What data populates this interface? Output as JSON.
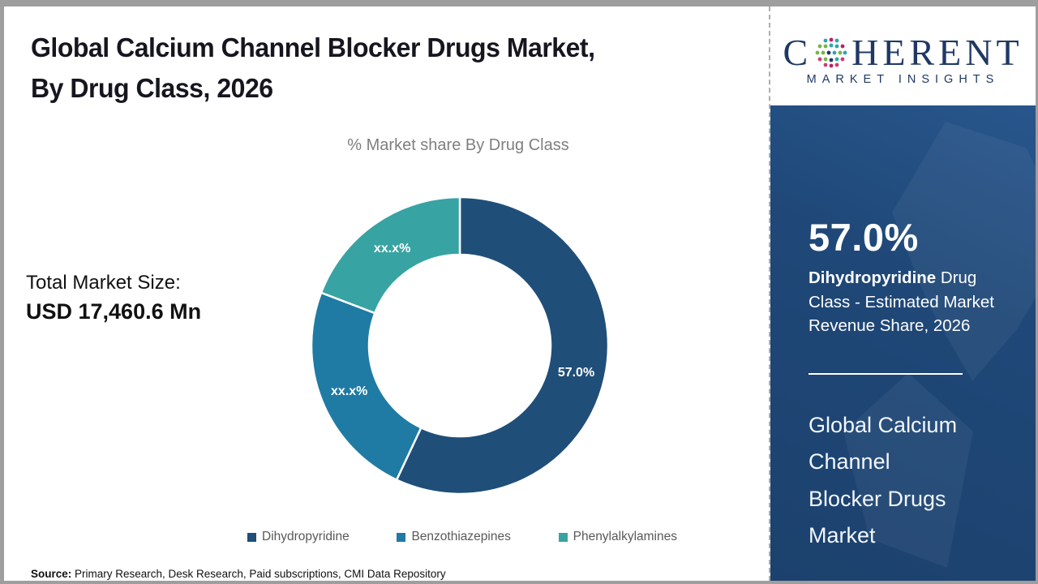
{
  "header": {
    "title_lines": [
      "Global Calcium Channel Blocker Drugs Market,",
      "By Drug Class, 2026"
    ]
  },
  "chart_data": {
    "type": "donut",
    "title": "% Market share By Drug Class",
    "total_label": "Total Market Size:",
    "total_value": "USD 17,460.6 Mn",
    "start_angle_deg": 0,
    "direction": "clockwise",
    "legend_position": "bottom",
    "inner_radius_ratio": 0.61,
    "segments": [
      {
        "name": "Dihydropyridine",
        "value_pct": 57.0,
        "label": "57.0%",
        "color": "#1F4E79"
      },
      {
        "name": "Benzothiazepines",
        "value_pct": 23.8,
        "label": "xx.x%",
        "color": "#1F7BA4"
      },
      {
        "name": "Phenylalkylamines",
        "value_pct": 19.2,
        "label": "xx.x%",
        "color": "#38A3A3"
      }
    ]
  },
  "source": {
    "prefix": "Source:",
    "text": " Primary Research, Desk Research, Paid subscriptions, CMI Data Repository"
  },
  "sidebar": {
    "logo": {
      "word_start": "C",
      "word_end": "HERENT",
      "subtitle": "MARKET INSIGHTS"
    },
    "stat_value": "57.0%",
    "stat_term": "Dihydropyridine",
    "stat_rest": " Drug Class - Estimated Market Revenue Share, 2026",
    "market_title_lines": [
      "Global Calcium",
      "Channel",
      "Blocker Drugs",
      "Market"
    ]
  }
}
